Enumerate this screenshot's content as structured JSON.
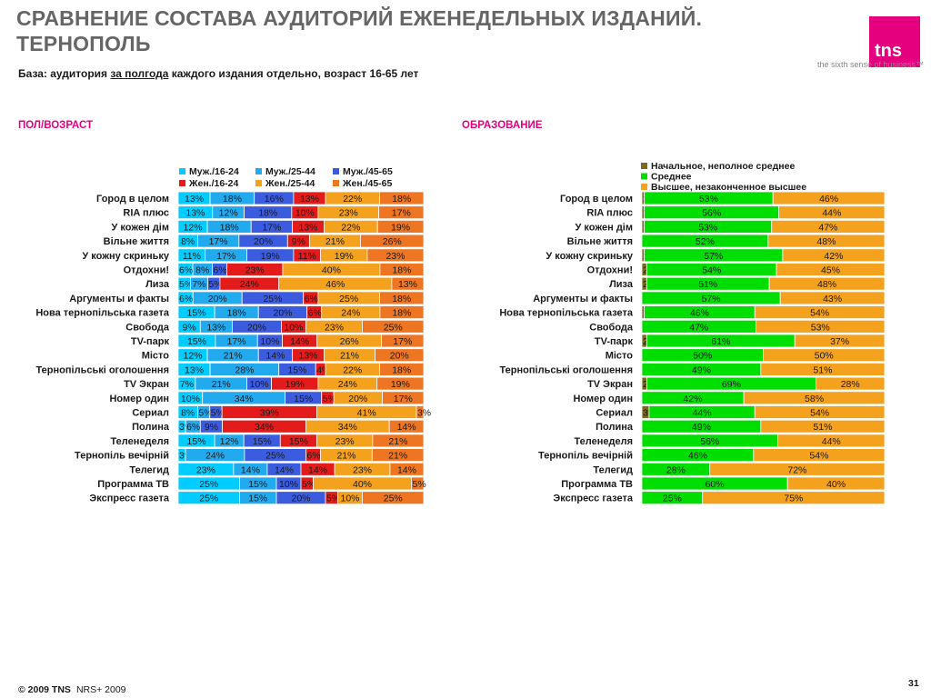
{
  "title_line1": "СРАВНЕНИЕ СОСТАВА АУДИТОРИЙ ЕЖЕНЕДЕЛЬНЫХ ИЗДАНИЙ.",
  "title_line2": "ТЕРНОПОЛЬ",
  "logo_text": "tns",
  "tagline": "the sixth sense of business™",
  "subtitle": {
    "before": "База: аудитория ",
    "underlined": "за полгода",
    "after": " каждого издания отдельно, возраст 16-65 лет"
  },
  "footer": {
    "copyright": "© 2009 TNS",
    "source": "NRS+ 2009"
  },
  "page_number": "31",
  "chart_data": [
    {
      "type": "bar",
      "stacked": "100%",
      "orientation": "horizontal",
      "title": "ПОЛ/ВОЗРАСТ",
      "legend_position": "top",
      "categories": [
        "Город в целом",
        "RIA плюс",
        "У кожен дім",
        "Вільне життя",
        "У кожну скриньку",
        "Отдохни!",
        "Лиза",
        "Аргументы и факты",
        "Нова тернопільська газета",
        "Свобода",
        "TV-парк",
        "Місто",
        "Тернопільські оголошення",
        "TV Экран",
        "Номер один",
        "Сериал",
        "Полина",
        "Теленеделя",
        "Тернопіль вечірній",
        "Телегид",
        "Программа ТВ",
        "Экспресс газета"
      ],
      "series": [
        {
          "name": "Муж./16-24",
          "color": "#00ccff",
          "values": [
            13,
            13,
            12,
            8,
            11,
            6,
            5,
            6,
            15,
            9,
            15,
            12,
            13,
            7,
            10,
            8,
            3,
            15,
            3,
            23,
            25,
            25
          ]
        },
        {
          "name": "Муж./25-44",
          "color": "#22aaee",
          "values": [
            18,
            12,
            18,
            17,
            17,
            8,
            7,
            20,
            18,
            13,
            17,
            21,
            28,
            21,
            34,
            5,
            6,
            12,
            24,
            14,
            15,
            15
          ]
        },
        {
          "name": "Муж./45-65",
          "color": "#3c5ce0",
          "values": [
            16,
            18,
            17,
            20,
            19,
            6,
            5,
            25,
            20,
            20,
            10,
            14,
            15,
            10,
            15,
            5,
            9,
            15,
            25,
            14,
            10,
            20
          ]
        },
        {
          "name": "Жен./16-24",
          "color": "#e31b1b",
          "values": [
            13,
            10,
            13,
            9,
            11,
            23,
            24,
            6,
            6,
            10,
            14,
            13,
            4,
            19,
            5,
            39,
            34,
            15,
            6,
            14,
            5,
            5
          ]
        },
        {
          "name": "Жен./25-44",
          "color": "#f4a11e",
          "values": [
            22,
            23,
            22,
            21,
            19,
            40,
            46,
            25,
            24,
            23,
            26,
            21,
            22,
            24,
            20,
            41,
            34,
            23,
            21,
            23,
            40,
            10
          ]
        },
        {
          "name": "Жен./45-65",
          "color": "#ee7622",
          "values": [
            18,
            17,
            19,
            26,
            23,
            18,
            13,
            18,
            18,
            25,
            17,
            20,
            18,
            19,
            17,
            3,
            14,
            21,
            21,
            14,
            5,
            25
          ]
        }
      ]
    },
    {
      "type": "bar",
      "stacked": "100%",
      "orientation": "horizontal",
      "title": "ОБРАЗОВАНИЕ",
      "legend_position": "top",
      "categories": [
        "Город в целом",
        "RIA плюс",
        "У кожен дім",
        "Вільне життя",
        "У кожну скриньку",
        "Отдохни!",
        "Лиза",
        "Аргументы и факты",
        "Нова тернопільська газета",
        "Свобода",
        "TV-парк",
        "Місто",
        "Тернопільські оголошення",
        "TV Экран",
        "Номер один",
        "Сериал",
        "Полина",
        "Теленеделя",
        "Тернопіль вечірній",
        "Телегид",
        "Программа ТВ",
        "Экспресс газета"
      ],
      "series": [
        {
          "name": "Начальное, неполное среднее",
          "color": "#7a6a1e",
          "values": [
            1,
            1,
            1,
            null,
            1,
            2,
            2,
            null,
            1,
            null,
            2,
            null,
            null,
            2,
            null,
            3,
            null,
            null,
            null,
            null,
            null,
            null
          ]
        },
        {
          "name": "Среднее",
          "color": "#00dd00",
          "values": [
            53,
            56,
            53,
            52,
            57,
            54,
            51,
            57,
            46,
            47,
            61,
            50,
            49,
            69,
            42,
            44,
            49,
            56,
            46,
            28,
            60,
            25
          ]
        },
        {
          "name": "Высшее, незаконченное высшее",
          "color": "#f4a11e",
          "values": [
            46,
            44,
            47,
            48,
            42,
            45,
            48,
            43,
            54,
            53,
            37,
            50,
            51,
            28,
            58,
            54,
            51,
            44,
            54,
            72,
            40,
            75
          ]
        }
      ]
    }
  ]
}
